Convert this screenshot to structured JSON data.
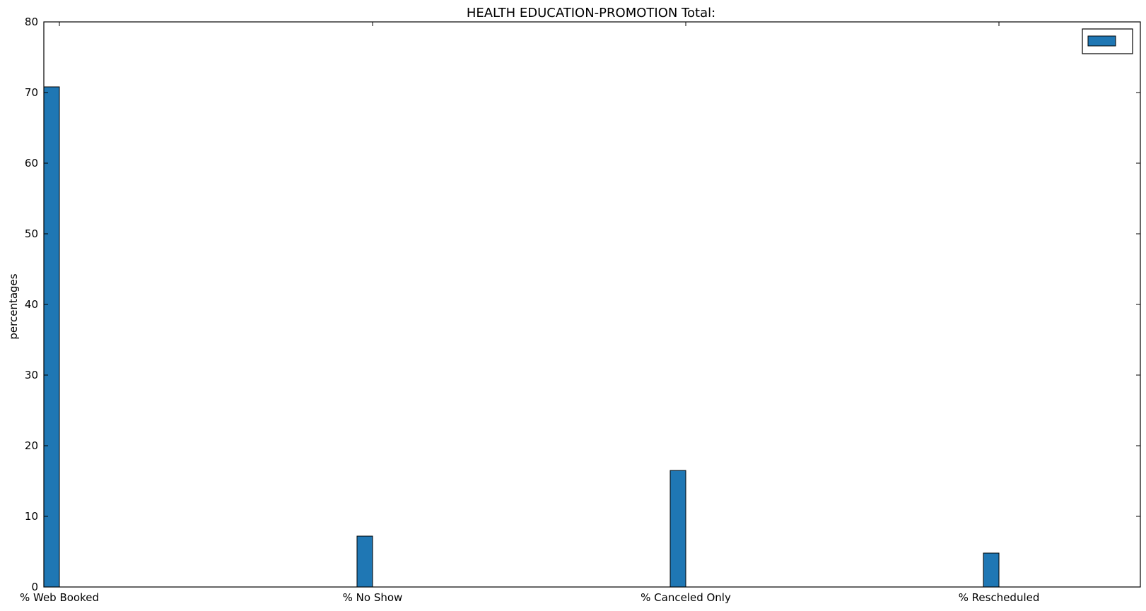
{
  "chart_data": {
    "type": "bar",
    "title": "HEALTH EDUCATION-PROMOTION Total:",
    "xlabel": "",
    "ylabel": "percentages",
    "ylim": [
      0,
      80
    ],
    "yticks": [
      0,
      10,
      20,
      30,
      40,
      50,
      60,
      70,
      80
    ],
    "categories": [
      "% Web Booked",
      "% No Show",
      "% Canceled Only",
      "% Rescheduled"
    ],
    "series": [
      {
        "values": [
          70.8,
          7.2,
          16.5,
          4.8
        ]
      }
    ],
    "bar_color": "#1f77b4",
    "legend": {
      "position": "top-right",
      "entries": [
        ""
      ]
    },
    "grid": false
  }
}
